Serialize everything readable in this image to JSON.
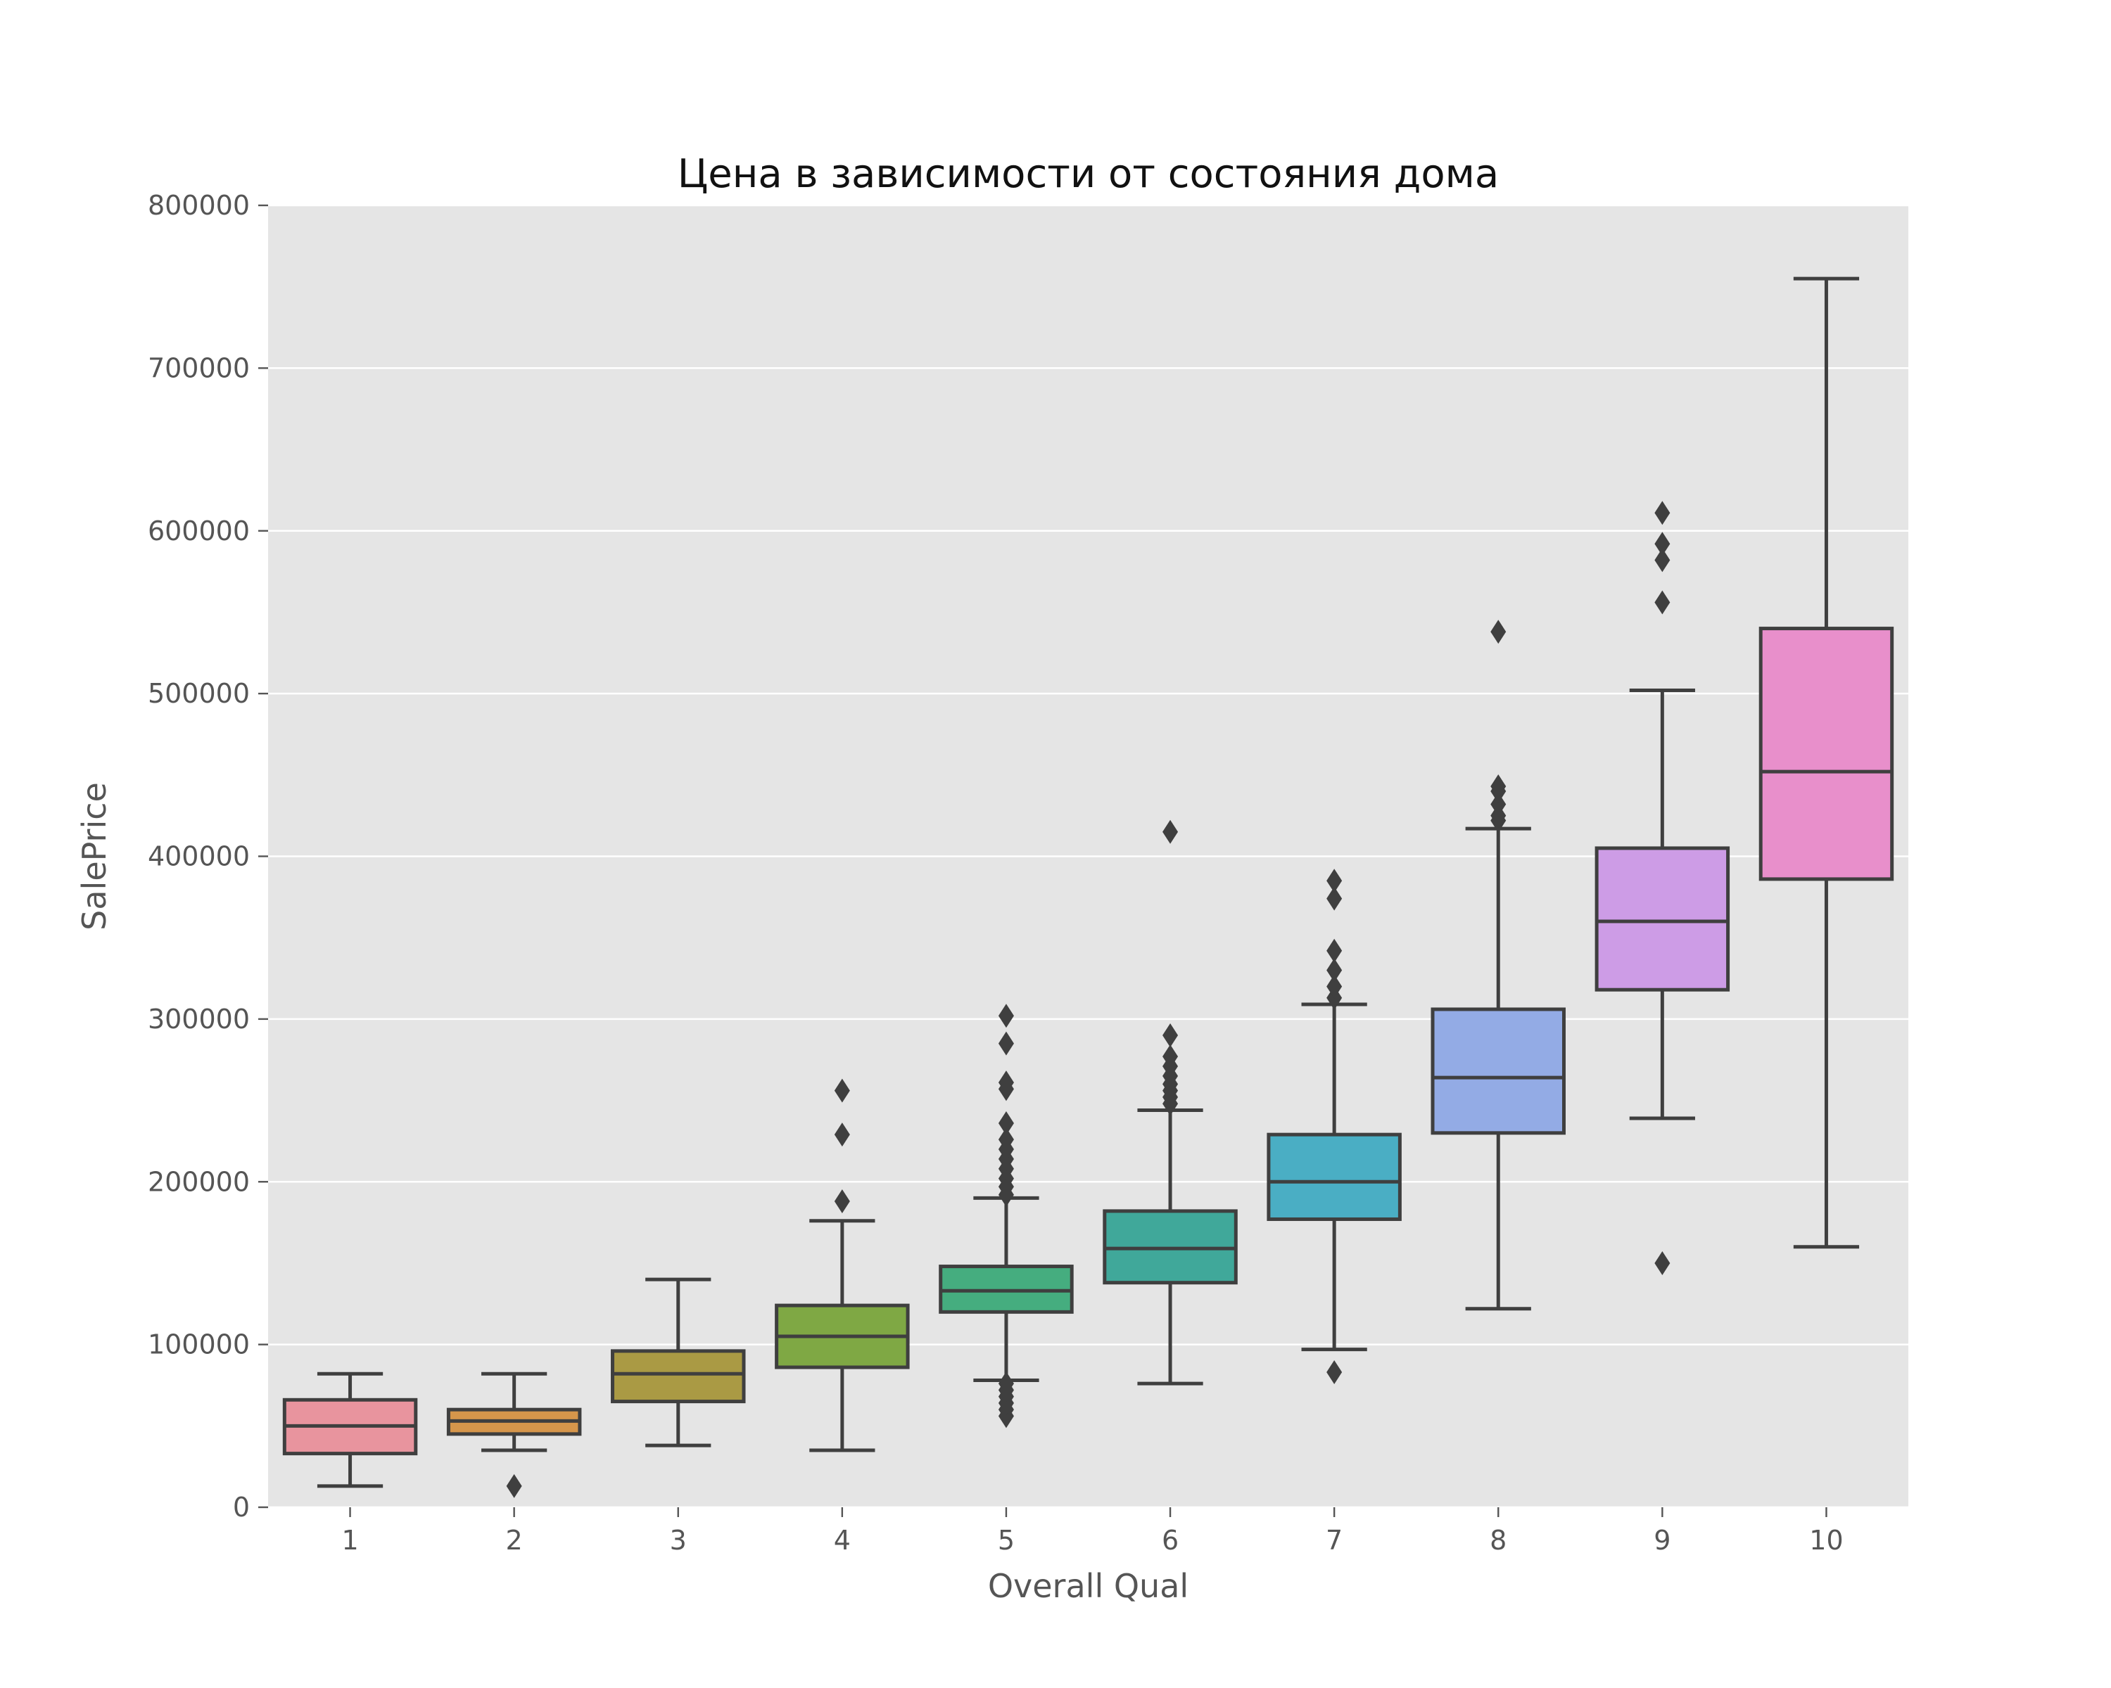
{
  "chart_data": {
    "type": "box",
    "title": "Цена в зависимости от состояния дома",
    "xlabel": "Overall Qual",
    "ylabel": "SalePrice",
    "ylim": [
      0,
      800000
    ],
    "y_ticks": [
      0,
      100000,
      200000,
      300000,
      400000,
      500000,
      600000,
      700000,
      800000
    ],
    "categories": [
      "1",
      "2",
      "3",
      "4",
      "5",
      "6",
      "7",
      "8",
      "9",
      "10"
    ],
    "grid": true,
    "legend": "none",
    "background": "#e5e5e5",
    "boxes": [
      {
        "category": "1",
        "color": "#e8949e",
        "whisker_low": 13000,
        "q1": 33000,
        "median": 50000,
        "q3": 66000,
        "whisker_high": 82000,
        "outliers": []
      },
      {
        "category": "2",
        "color": "#d6964b",
        "whisker_low": 35000,
        "q1": 45000,
        "median": 53000,
        "q3": 60000,
        "whisker_high": 82000,
        "outliers": [
          13000
        ]
      },
      {
        "category": "3",
        "color": "#aa9a44",
        "whisker_low": 38000,
        "q1": 65000,
        "median": 82000,
        "q3": 96000,
        "whisker_high": 140000,
        "outliers": []
      },
      {
        "category": "4",
        "color": "#7fa844",
        "whisker_low": 35000,
        "q1": 86000,
        "median": 105000,
        "q3": 124000,
        "whisker_high": 176000,
        "outliers": [
          188000,
          229000,
          256000
        ]
      },
      {
        "category": "5",
        "color": "#45ad7f",
        "whisker_low": 78000,
        "q1": 120000,
        "median": 133000,
        "q3": 148000,
        "whisker_high": 190000,
        "outliers": [
          56000,
          60000,
          64000,
          68000,
          72000,
          76000,
          192000,
          197000,
          202000,
          208000,
          214000,
          220000,
          226000,
          236000,
          257000,
          261000,
          285000,
          302000
        ]
      },
      {
        "category": "6",
        "color": "#40a89a",
        "whisker_low": 76000,
        "q1": 138000,
        "median": 159000,
        "q3": 182000,
        "whisker_high": 244000,
        "outliers": [
          248000,
          252000,
          256000,
          260000,
          265000,
          271000,
          277000,
          290000,
          415000
        ]
      },
      {
        "category": "7",
        "color": "#4aaec4",
        "whisker_low": 97000,
        "q1": 177000,
        "median": 200000,
        "q3": 229000,
        "whisker_high": 309000,
        "outliers": [
          83000,
          313000,
          320000,
          330000,
          342000,
          374000,
          385000
        ]
      },
      {
        "category": "8",
        "color": "#93abe5",
        "whisker_low": 122000,
        "q1": 230000,
        "median": 264000,
        "q3": 306000,
        "whisker_high": 417000,
        "outliers": [
          422000,
          425000,
          432000,
          440000,
          443000,
          538000
        ]
      },
      {
        "category": "9",
        "color": "#cd9ce6",
        "whisker_low": 239000,
        "q1": 318000,
        "median": 360000,
        "q3": 405000,
        "whisker_high": 502000,
        "outliers": [
          150000,
          556000,
          582000,
          592000,
          611000
        ]
      },
      {
        "category": "10",
        "color": "#e88fcb",
        "whisker_low": 160000,
        "q1": 386000,
        "median": 452000,
        "q3": 540000,
        "whisker_high": 755000,
        "outliers": []
      }
    ]
  }
}
